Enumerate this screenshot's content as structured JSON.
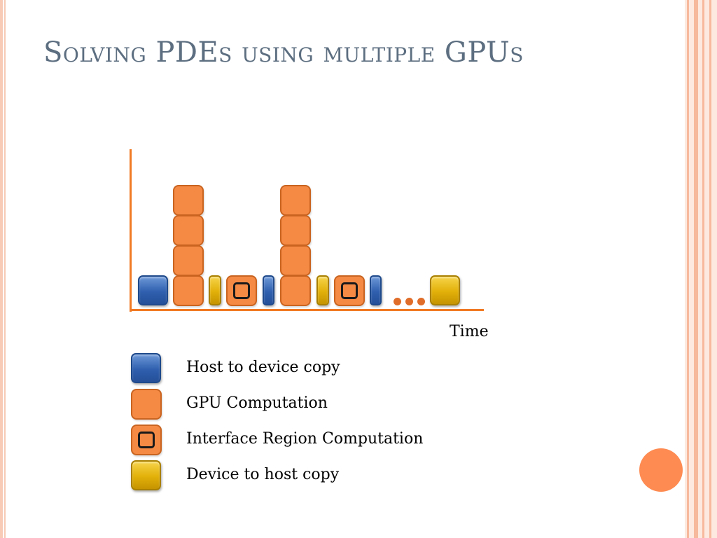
{
  "slide": {
    "title": "Solving PDEs using multiple GPUs"
  },
  "diagram": {
    "x_axis_label": "Time",
    "ellipsis": "...",
    "timeline": [
      {
        "kind": "host-to-device",
        "height_units": 1
      },
      {
        "kind": "gpu-computation",
        "height_units": 4
      },
      {
        "kind": "device-to-host-thin",
        "height_units": 1
      },
      {
        "kind": "interface-region",
        "height_units": 1
      },
      {
        "kind": "host-to-device-thin",
        "height_units": 1
      },
      {
        "kind": "gpu-computation",
        "height_units": 4
      },
      {
        "kind": "device-to-host-thin",
        "height_units": 1
      },
      {
        "kind": "interface-region",
        "height_units": 1
      },
      {
        "kind": "host-to-device-thin",
        "height_units": 1
      },
      {
        "kind": "ellipsis"
      },
      {
        "kind": "device-to-host",
        "height_units": 1
      }
    ]
  },
  "legend": {
    "items": [
      {
        "label": "Host to device copy",
        "color": "#2f5fae"
      },
      {
        "label": "GPU Computation",
        "color": "#f58a45"
      },
      {
        "label": "Interface Region Computation",
        "color": "#f58a45"
      },
      {
        "label": "Device to host copy",
        "color": "#e2b009"
      }
    ]
  },
  "colors": {
    "accent": "#f07a24",
    "title": "#5c6e80",
    "decor": "#fe8b52"
  }
}
